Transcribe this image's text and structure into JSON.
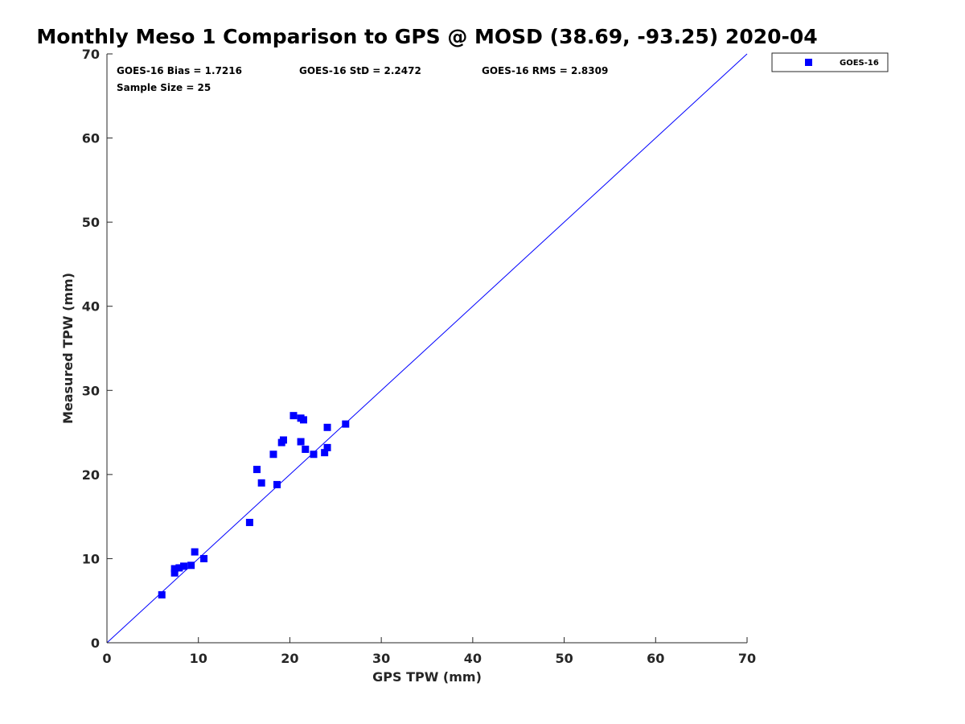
{
  "chart_data": {
    "type": "scatter",
    "title": "Monthly Meso 1 Comparison to GPS @ MOSD (38.69, -93.25) 2020-04",
    "xlabel": "GPS TPW (mm)",
    "ylabel": "Measured TPW (mm)",
    "xlim": [
      0,
      70
    ],
    "ylim": [
      0,
      70
    ],
    "xticks": [
      "0",
      "10",
      "20",
      "30",
      "40",
      "50",
      "60",
      "70"
    ],
    "yticks": [
      "0",
      "10",
      "20",
      "30",
      "40",
      "50",
      "60",
      "70"
    ],
    "grid": false,
    "legend_position": "top-right, outside plot",
    "reference_line": {
      "x": [
        0,
        70
      ],
      "y": [
        0,
        70
      ],
      "color": "#0000ff"
    },
    "annotations": {
      "bias": "GOES-16 Bias = 1.7216",
      "std": "GOES-16 StD = 2.2472",
      "rms": "GOES-16 RMS = 2.8309",
      "sample_size": "Sample Size = 25"
    },
    "series": [
      {
        "name": "GOES-16",
        "color": "#0000ff",
        "marker": "square",
        "points": [
          [
            6.0,
            5.7
          ],
          [
            7.4,
            8.3
          ],
          [
            7.4,
            8.8
          ],
          [
            7.9,
            8.9
          ],
          [
            8.4,
            9.1
          ],
          [
            9.2,
            9.2
          ],
          [
            9.6,
            10.8
          ],
          [
            10.6,
            10.0
          ],
          [
            15.6,
            14.3
          ],
          [
            16.4,
            20.6
          ],
          [
            16.9,
            19.0
          ],
          [
            18.2,
            22.4
          ],
          [
            18.6,
            18.8
          ],
          [
            19.1,
            23.8
          ],
          [
            19.3,
            24.1
          ],
          [
            20.4,
            27.0
          ],
          [
            21.2,
            26.7
          ],
          [
            21.2,
            23.9
          ],
          [
            21.5,
            26.5
          ],
          [
            21.7,
            23.0
          ],
          [
            22.6,
            22.4
          ],
          [
            23.8,
            22.6
          ],
          [
            24.1,
            25.6
          ],
          [
            24.1,
            23.2
          ],
          [
            26.1,
            26.0
          ]
        ]
      }
    ]
  }
}
